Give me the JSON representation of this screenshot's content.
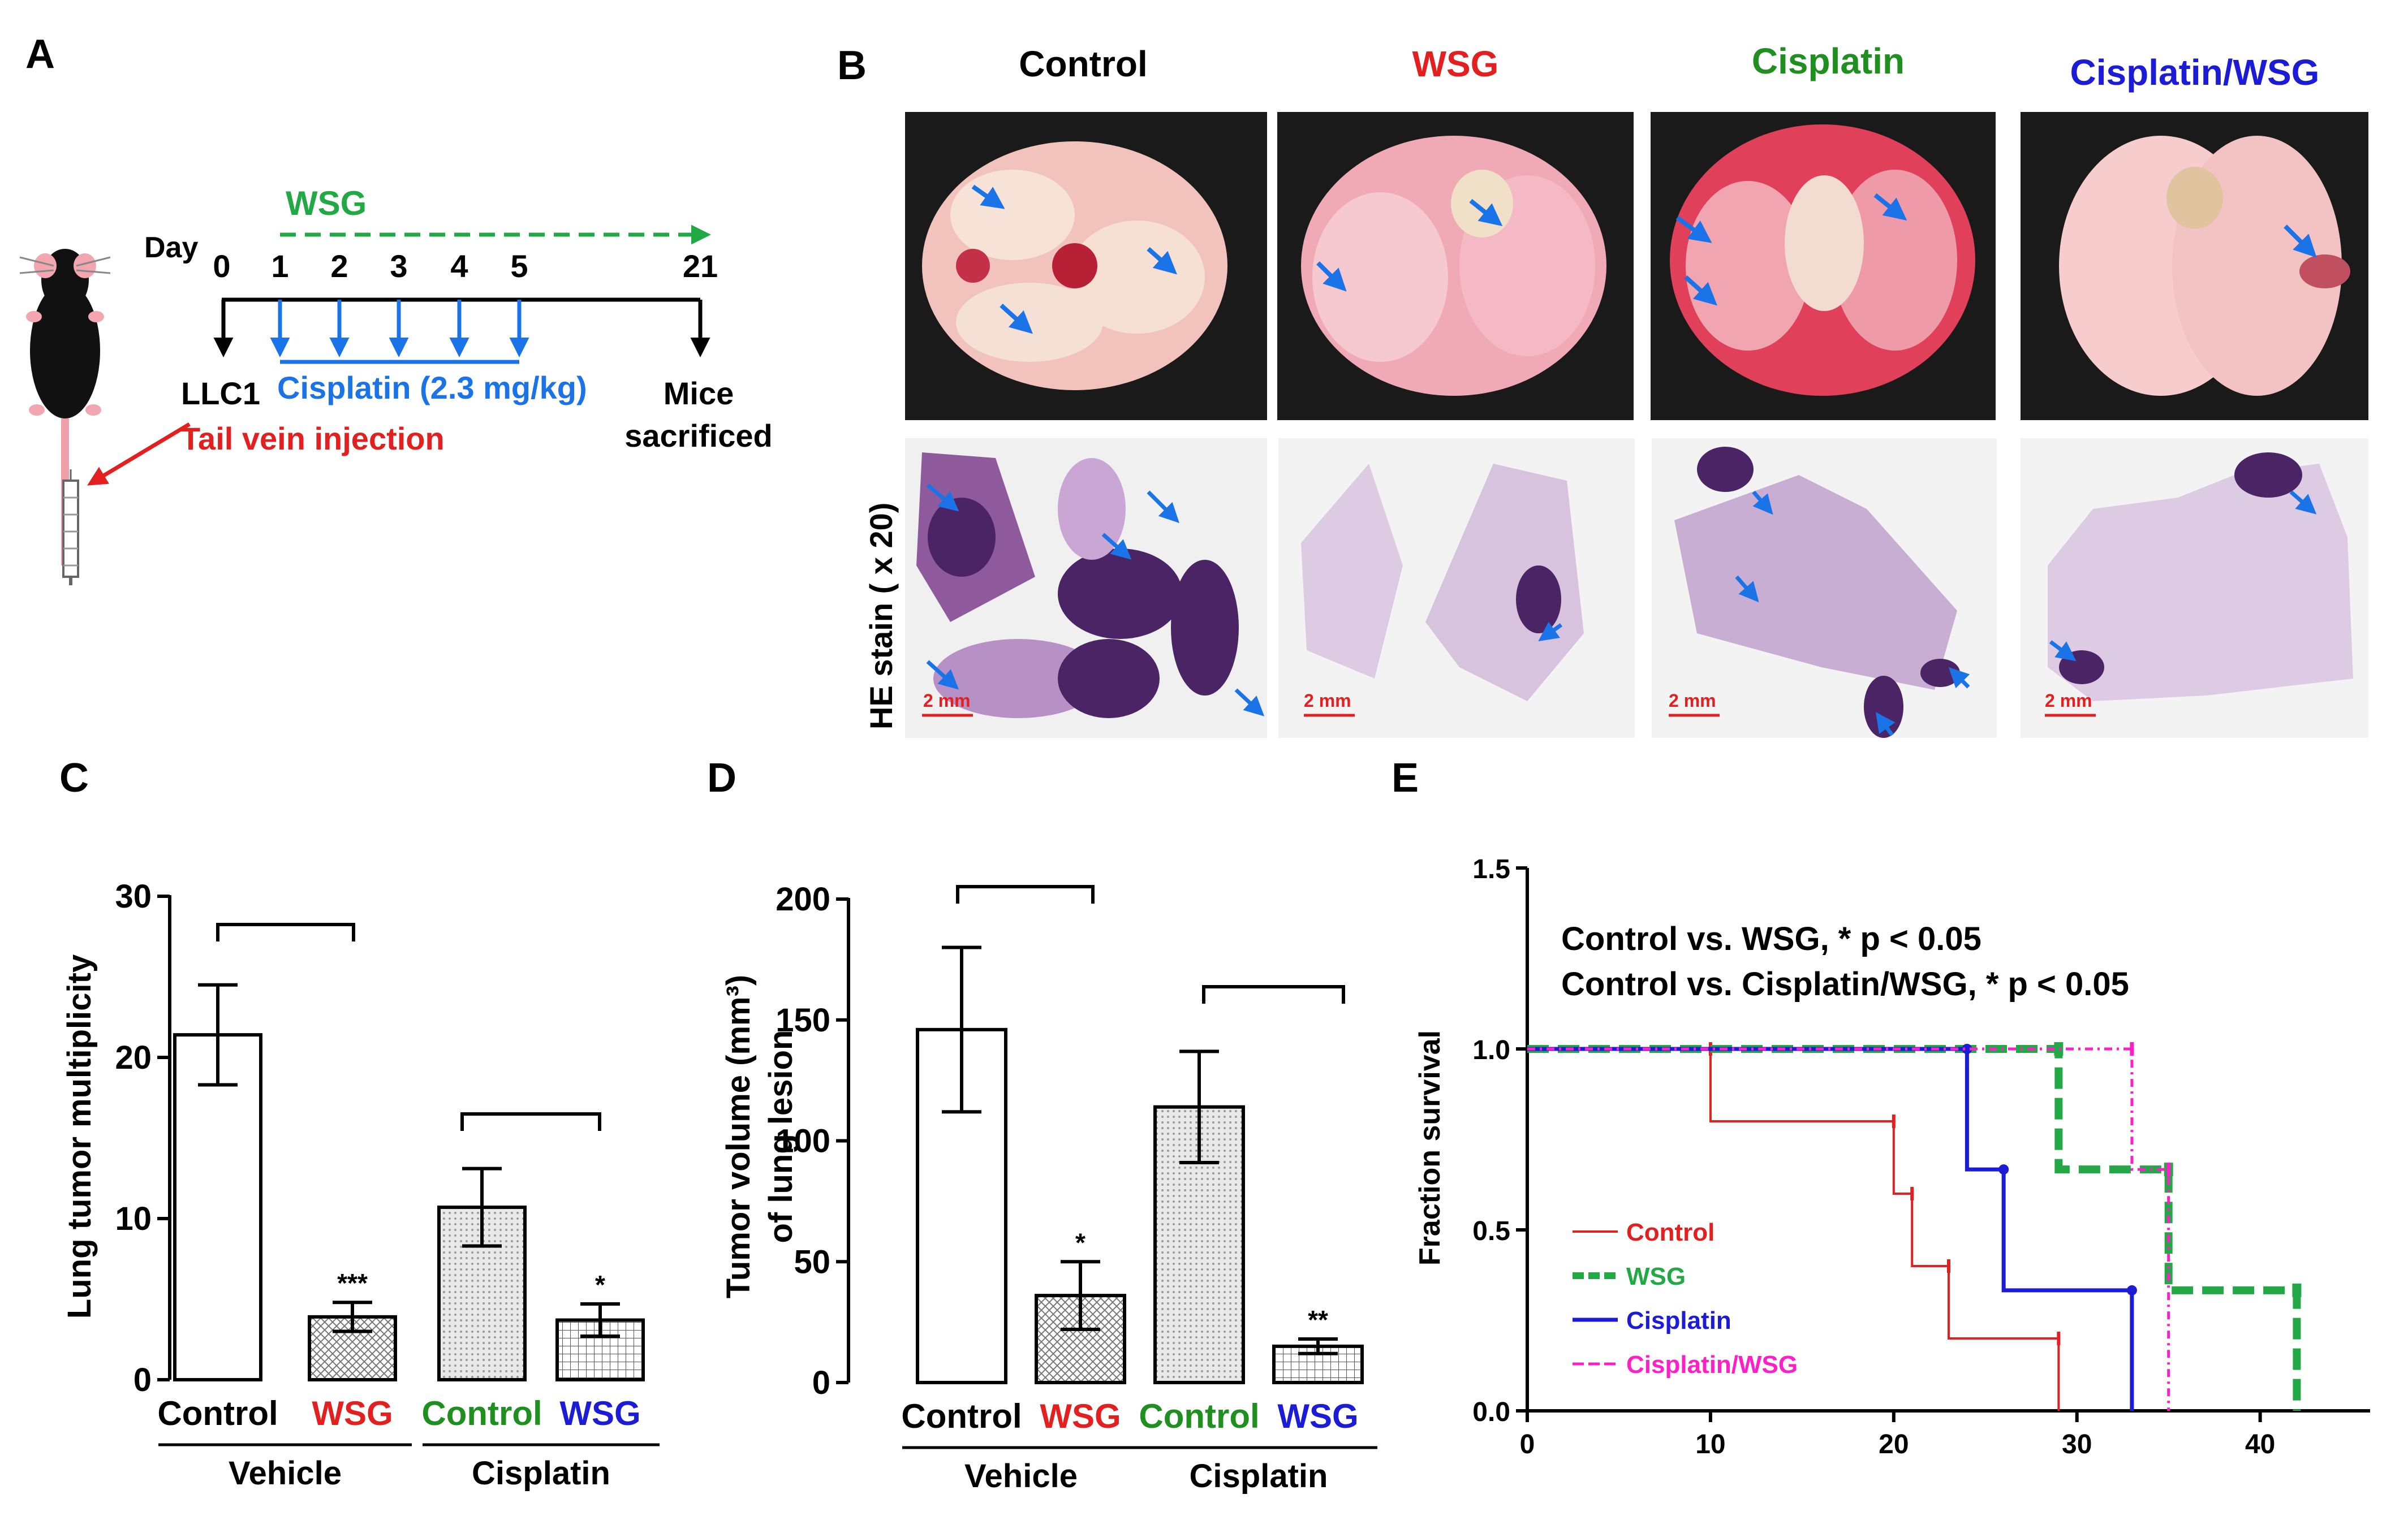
{
  "colors": {
    "red": "#e32020",
    "green": "#1f8f1f",
    "blue": "#1c1cd6",
    "lightblue": "#1b73e8",
    "dkgreen": "#22a844",
    "magenta": "#ff1fc6",
    "black": "#000000"
  },
  "panelA": {
    "letter": "A",
    "wsg_label": "WSG",
    "day_label": "Day",
    "days": [
      "0",
      "1",
      "2",
      "3",
      "4",
      "5",
      "21"
    ],
    "cisplatin_label": "Cisplatin (2.3 mg/kg)",
    "llc1": "LLC1",
    "tail_vein": "Tail vein injection",
    "mice_line1": "Mice",
    "mice_line2": "sacrificed"
  },
  "panelB": {
    "letter": "B",
    "groups": [
      "Control",
      "WSG",
      "Cisplatin",
      "Cisplatin/WSG"
    ],
    "he_label": "HE stain ( x 20)",
    "scale_label": "2 mm"
  },
  "chart_data": [
    {
      "id": "C",
      "type": "bar",
      "letter": "C",
      "ylabel": "Lung tumor multiplicity",
      "ylim": [
        0,
        30
      ],
      "yticks": [
        "0",
        "10",
        "20",
        "30"
      ],
      "categories": [
        "Control",
        "WSG",
        "Control",
        "WSG"
      ],
      "values": [
        21.4,
        3.9,
        10.7,
        3.7
      ],
      "errors": [
        3.1,
        0.9,
        2.4,
        1.0
      ],
      "significance": [
        "",
        "***",
        "",
        "*"
      ],
      "groups": [
        {
          "label": "Vehicle"
        },
        {
          "label": "Cisplatin"
        }
      ]
    },
    {
      "id": "D",
      "type": "bar",
      "letter": "D",
      "ylabel_line1": "Tumor volume (mm³)",
      "ylabel_line2": "of lung lesion",
      "ylim": [
        0,
        200
      ],
      "yticks": [
        "0",
        "50",
        "100",
        "150",
        "200"
      ],
      "categories": [
        "Control",
        "WSG",
        "Control",
        "WSG"
      ],
      "values": [
        146,
        36,
        114,
        15
      ],
      "errors": [
        34,
        14,
        23,
        3
      ],
      "significance": [
        "",
        "*",
        "",
        "**"
      ],
      "groups": [
        {
          "label": "Vehicle"
        },
        {
          "label": "Cisplatin"
        }
      ]
    },
    {
      "id": "E",
      "type": "line",
      "letter": "E",
      "ylabel": "Fraction survival",
      "xlim": [
        0,
        46
      ],
      "ylim": [
        0,
        1.5
      ],
      "xticks": [
        "0",
        "10",
        "20",
        "30",
        "40"
      ],
      "yticks": [
        "0.0",
        "0.5",
        "1.0",
        "1.5"
      ],
      "annotation_line1": "Control vs. WSG, * p < 0.05",
      "annotation_line2": "Control vs. Cisplatin/WSG, * p < 0.05",
      "series": [
        {
          "name": "Control",
          "x": [
            0,
            10,
            10,
            20,
            20,
            21,
            21,
            23,
            23,
            29,
            29
          ],
          "y": [
            1,
            1,
            0.8,
            0.8,
            0.6,
            0.6,
            0.4,
            0.4,
            0.2,
            0.2,
            0
          ]
        },
        {
          "name": "WSG",
          "x": [
            0,
            29,
            29,
            35,
            35,
            42,
            42
          ],
          "y": [
            1,
            1,
            0.667,
            0.667,
            0.333,
            0.333,
            0
          ]
        },
        {
          "name": "Cisplatin",
          "x": [
            0,
            24,
            24,
            26,
            26,
            33,
            33
          ],
          "y": [
            1,
            1,
            0.667,
            0.667,
            0.333,
            0.333,
            0
          ]
        },
        {
          "name": "Cisplatin/WSG",
          "x": [
            0,
            33,
            33,
            35,
            35
          ],
          "y": [
            1,
            1,
            0.667,
            0.667,
            0
          ]
        }
      ]
    }
  ]
}
